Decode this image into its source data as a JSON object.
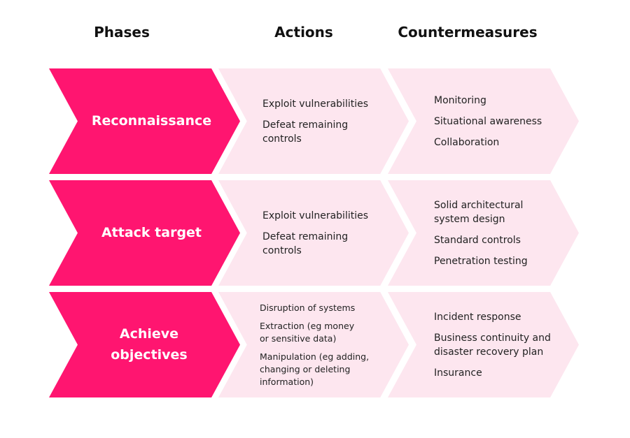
{
  "headers": {
    "phases": "Phases",
    "actions": "Actions",
    "countermeasures": "Countermeasures"
  },
  "colors": {
    "phase_fill": "#ff1570",
    "light_fill": "#fde6ef",
    "phase_text": "#ffffff",
    "body_text": "#222222"
  },
  "rows": [
    {
      "phase": "Reconnaissance",
      "actions": [
        "Exploit vulnerabilities",
        "Defeat remaining controls"
      ],
      "countermeasures": [
        "Monitoring",
        "Situational awareness",
        "Collaboration"
      ]
    },
    {
      "phase": "Attack target",
      "actions": [
        "Exploit vulnerabilities",
        "Defeat remaining controls"
      ],
      "countermeasures": [
        "Solid architectural system design",
        "Standard controls",
        "Penetration testing"
      ]
    },
    {
      "phase": "Achieve objectives",
      "actions": [
        "Disruption of systems",
        "Extraction (eg money or sensitive data)",
        "Manipulation (eg adding, changing or deleting information)"
      ],
      "countermeasures": [
        "Incident response",
        "Business continuity and disaster recovery plan",
        "Insurance"
      ]
    }
  ]
}
